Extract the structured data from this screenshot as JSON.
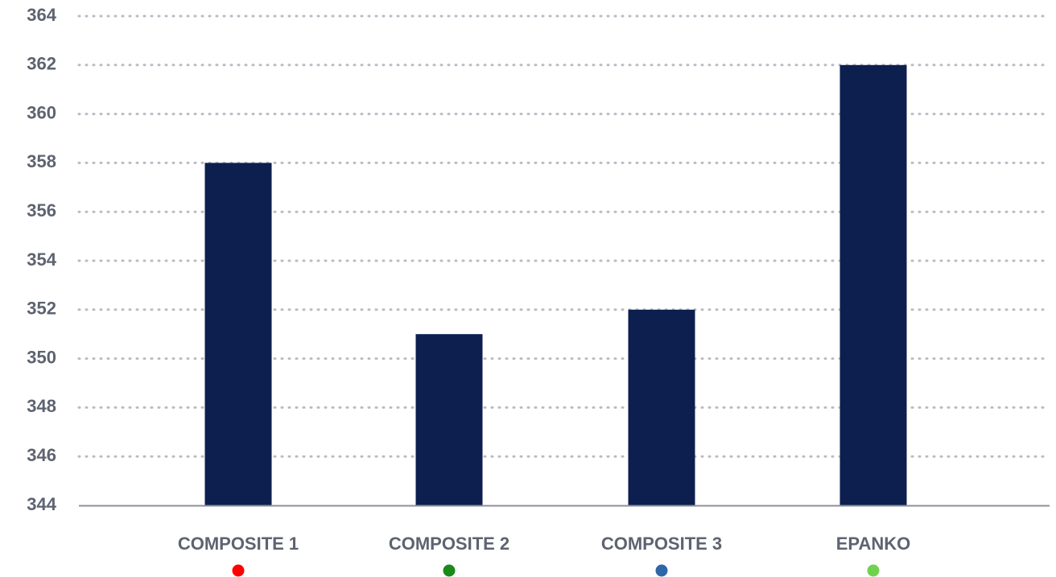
{
  "chart_data": {
    "type": "bar",
    "categories": [
      "COMPOSITE 1",
      "COMPOSITE 2",
      "COMPOSITE 3",
      "EPANKO"
    ],
    "values": [
      358,
      351,
      352,
      362
    ],
    "category_marker_colors": [
      "#ff0000",
      "#1a8a1a",
      "#2e67a6",
      "#6fd24f"
    ],
    "bar_color": "#0c1f4e",
    "ylim": [
      344,
      364
    ],
    "yticks": [
      344,
      346,
      348,
      350,
      352,
      354,
      356,
      358,
      360,
      362,
      364
    ],
    "grid": "dotted horizontal",
    "title": "",
    "xlabel": "",
    "ylabel": ""
  }
}
